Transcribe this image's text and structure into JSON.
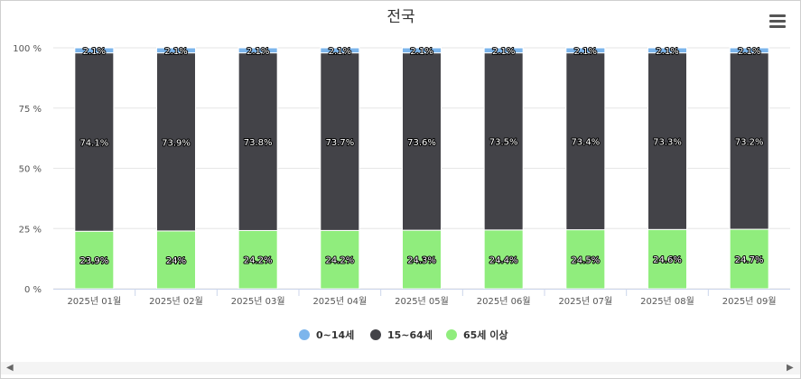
{
  "chart_data": {
    "type": "bar",
    "stacked": true,
    "percent": true,
    "title": "전국",
    "categories": [
      "2025년 01월",
      "2025년 02월",
      "2025년 03월",
      "2025년 04월",
      "2025년 05월",
      "2025년 06월",
      "2025년 07월",
      "2025년 08월",
      "2025년 09월"
    ],
    "series": [
      {
        "name": "0~14세",
        "color": "#7cb5ec",
        "values": [
          2.1,
          2.1,
          2.1,
          2.1,
          2.1,
          2.1,
          2.1,
          2.1,
          2.1
        ]
      },
      {
        "name": "15~64세",
        "color": "#434348",
        "values": [
          74.1,
          73.9,
          73.8,
          73.7,
          73.6,
          73.5,
          73.4,
          73.3,
          73.2
        ]
      },
      {
        "name": "65세 이상",
        "color": "#90ed7d",
        "values": [
          23.9,
          24,
          24.2,
          24.2,
          24.3,
          24.4,
          24.5,
          24.6,
          24.7
        ]
      }
    ],
    "ylim": [
      0,
      100
    ],
    "yticks": [
      0,
      25,
      50,
      75,
      100
    ],
    "ytick_suffix": "%",
    "label_suffix": "%",
    "legend_position": "bottom",
    "grid": true
  },
  "ui": {
    "menu_icon": "hamburger-icon",
    "scroll_left_icon": "◀",
    "scroll_right_icon": "▶"
  }
}
